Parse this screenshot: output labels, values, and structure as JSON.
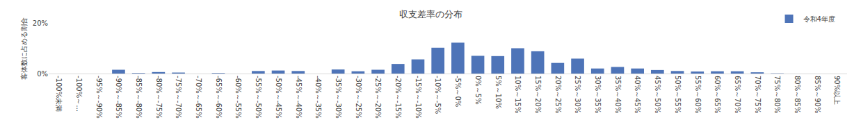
{
  "chart_data": {
    "type": "bar",
    "title": "収支差率の分布",
    "ylabel": "客体数に占める割合",
    "categories": [
      "-100%未満",
      "-100%～…",
      "-95%～-90%",
      "-90%～-85%",
      "-85%～-80%",
      "-80%～-75%",
      "-75%～-70%",
      "-70%～-65%",
      "-65%～-60%",
      "-60%～-55%",
      "-55%～-50%",
      "-50%～-45%",
      "-45%～-40%",
      "-40%～-35%",
      "-35%～-30%",
      "-30%～-25%",
      "-25%～-20%",
      "-20%～-15%",
      "-15%～-10%",
      "-10%～-5%",
      "-5%～0%",
      "0%～5%",
      "5%～10%",
      "10%～15%",
      "15%～20%",
      "20%～25%",
      "25%～30%",
      "30%～35%",
      "35%～40%",
      "40%～45%",
      "45%～50%",
      "50%～55%",
      "55%～60%",
      "60%～65%",
      "65%～70%",
      "70%～75%",
      "75%～80%",
      "80%～85%",
      "85%～90%",
      "90%以上"
    ],
    "series": [
      {
        "name": "令和4年度",
        "color": "#4e74b8",
        "values": [
          0,
          0,
          0,
          1.5,
          0.2,
          0.6,
          0.4,
          0,
          0.2,
          0,
          1.0,
          1.2,
          1.0,
          0,
          1.6,
          0.9,
          1.5,
          3.8,
          5.6,
          10.2,
          12.2,
          7.0,
          6.9,
          10.0,
          8.8,
          4.2,
          5.9,
          2.0,
          2.6,
          2.0,
          1.4,
          1.0,
          0.8,
          0.9,
          0.9,
          0.5,
          0.1,
          0,
          0,
          0
        ]
      }
    ],
    "ylim": [
      0,
      20
    ],
    "yticks": [
      {
        "value": 0,
        "label": "0%"
      },
      {
        "value": 20,
        "label": "20%"
      }
    ],
    "grid": false,
    "legend": "upper right"
  }
}
